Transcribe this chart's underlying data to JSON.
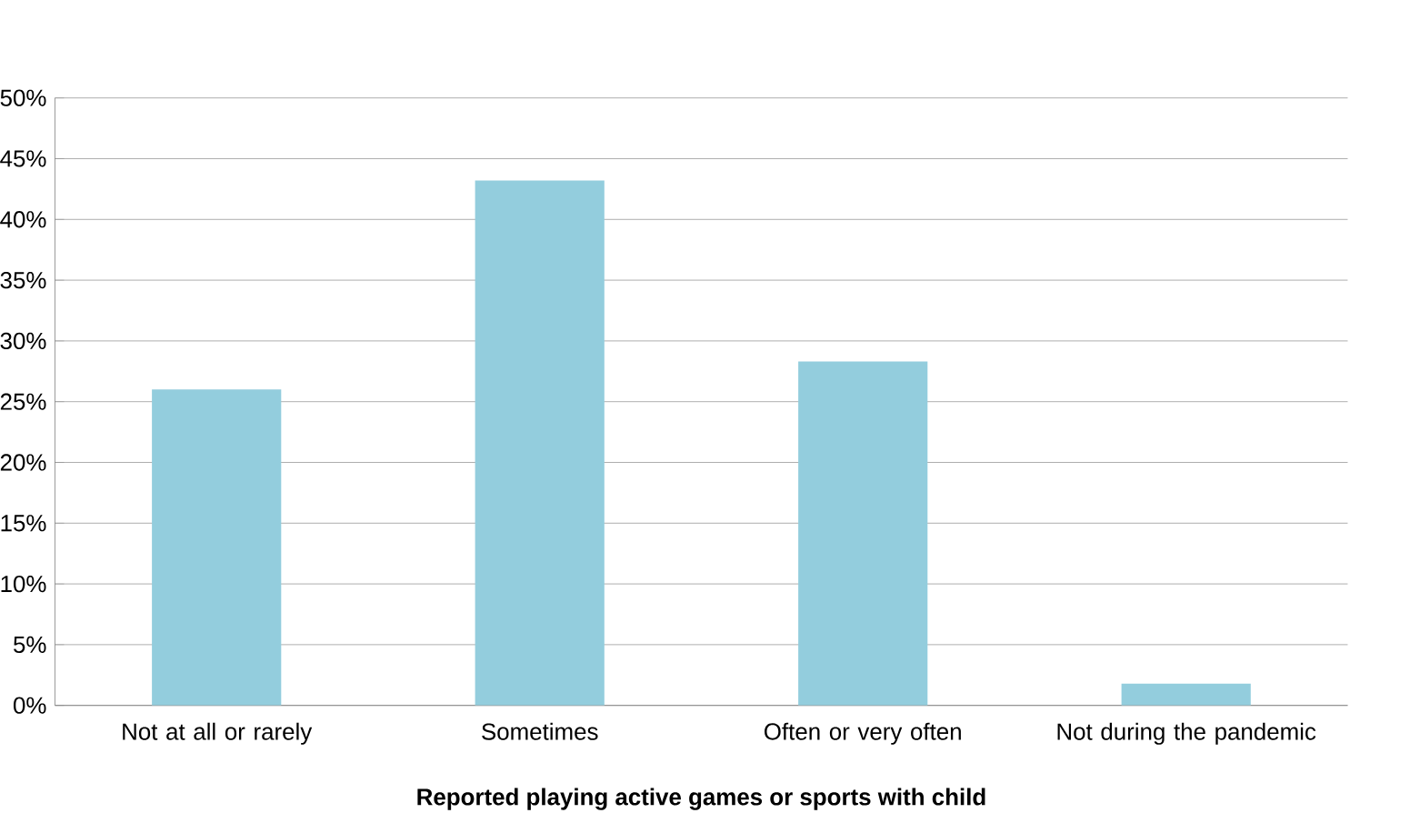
{
  "chart_data": {
    "type": "bar",
    "xlabel": "Reported playing active games or sports with child",
    "categories": [
      "Not at all or rarely",
      "Sometimes",
      "Often or very often",
      "Not during the pandemic"
    ],
    "values": [
      26,
      43.2,
      28.3,
      1.8
    ],
    "color": "#93cddd",
    "ylim": [
      0,
      50
    ],
    "yticks": [
      {
        "value": 0,
        "label": "0%"
      },
      {
        "value": 5,
        "label": "5%"
      },
      {
        "value": 10,
        "label": "10%"
      },
      {
        "value": 15,
        "label": "15%"
      },
      {
        "value": 20,
        "label": "20%"
      },
      {
        "value": 25,
        "label": "25%"
      },
      {
        "value": 30,
        "label": "30%"
      },
      {
        "value": 35,
        "label": "35%"
      },
      {
        "value": 40,
        "label": "40%"
      },
      {
        "value": 45,
        "label": "45%"
      },
      {
        "value": 50,
        "label": "50%"
      }
    ],
    "grid": "y"
  }
}
